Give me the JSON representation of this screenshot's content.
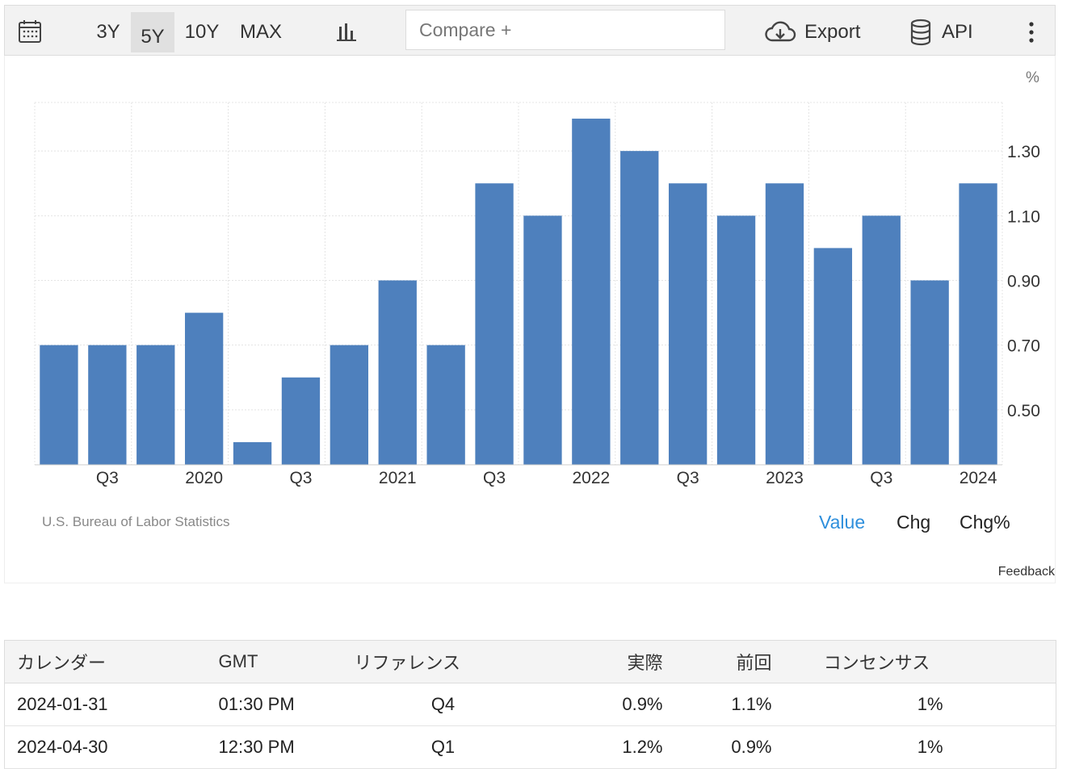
{
  "toolbar": {
    "ranges": [
      "3Y",
      "5Y",
      "10Y",
      "MAX"
    ],
    "active_range": "5Y",
    "compare_placeholder": "Compare +",
    "export_label": "Export",
    "api_label": "API"
  },
  "chart_data": {
    "type": "bar",
    "unit": "%",
    "x_tick_labels": [
      "Q3",
      "2020",
      "Q3",
      "2021",
      "Q3",
      "2022",
      "Q3",
      "2023",
      "Q3",
      "2024"
    ],
    "values": [
      0.7,
      0.7,
      0.7,
      0.8,
      0.4,
      0.6,
      0.7,
      0.9,
      0.7,
      1.2,
      1.1,
      1.4,
      1.3,
      1.2,
      1.1,
      1.2,
      1.0,
      1.1,
      0.9,
      1.2
    ],
    "y_ticks": [
      0.5,
      0.7,
      0.9,
      1.1,
      1.3
    ],
    "y_tick_labels": [
      "0.50",
      "0.70",
      "0.90",
      "1.10",
      "1.30"
    ],
    "ylim": [
      0.33,
      1.45
    ],
    "axis_side": "right",
    "grid": true,
    "bar_color": "#4e80bd"
  },
  "source": "U.S. Bureau of Labor Statistics",
  "view_tabs": [
    "Value",
    "Chg",
    "Chg%"
  ],
  "active_view": "Value",
  "feedback": "Feedback",
  "table": {
    "headers": [
      "カレンダー",
      "GMT",
      "リファレンス",
      "実際",
      "前回",
      "コンセンサス"
    ],
    "rows": [
      [
        "2024-01-31",
        "01:30 PM",
        "Q4",
        "0.9%",
        "1.1%",
        "1%"
      ],
      [
        "2024-04-30",
        "12:30 PM",
        "Q1",
        "1.2%",
        "0.9%",
        "1%"
      ]
    ]
  }
}
